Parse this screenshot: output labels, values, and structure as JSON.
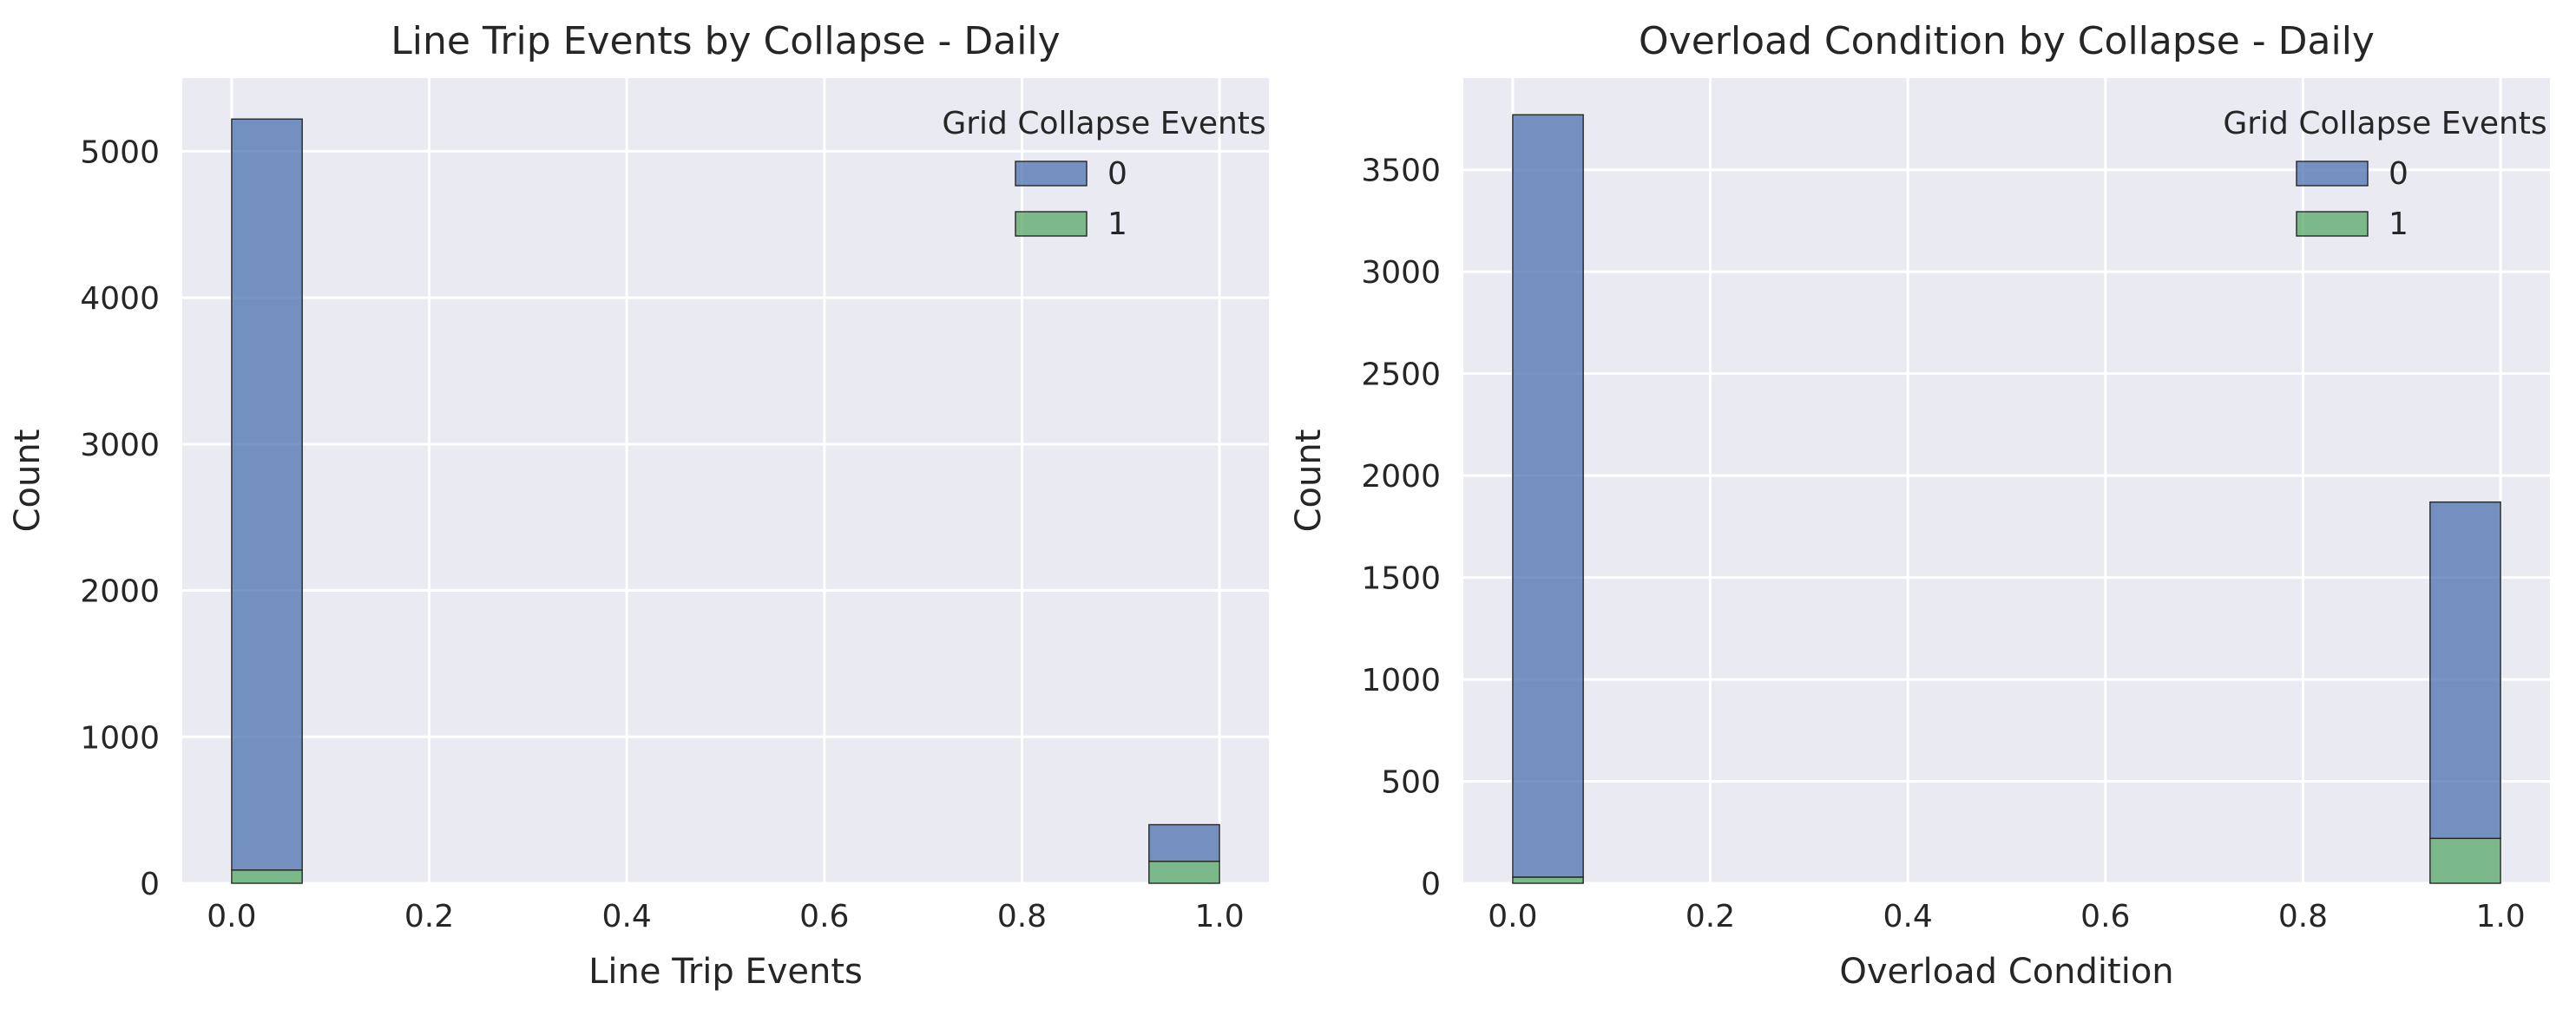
{
  "chart_data": [
    {
      "type": "bar",
      "subtype": "stacked-histogram",
      "title": "Line Trip Events by Collapse - Daily",
      "xlabel": "Line Trip Events",
      "ylabel": "Count",
      "xlim": [
        -0.05,
        1.05
      ],
      "ylim": [
        0,
        5500
      ],
      "xticks": [
        0.0,
        0.2,
        0.4,
        0.6,
        0.8,
        1.0
      ],
      "xtick_labels": [
        "0.0",
        "0.2",
        "0.4",
        "0.6",
        "0.8",
        "1.0"
      ],
      "yticks": [
        0,
        1000,
        2000,
        3000,
        4000,
        5000
      ],
      "ytick_labels": [
        "0",
        "1000",
        "2000",
        "3000",
        "4000",
        "5000"
      ],
      "grid": true,
      "legend": {
        "title": "Grid Collapse Events",
        "placement": "top-right"
      },
      "bins": [
        [
          0.0,
          0.0714
        ],
        [
          0.9286,
          1.0
        ]
      ],
      "series": [
        {
          "name": "0",
          "color": "#4c72b0",
          "values": [
            5130,
            250
          ]
        },
        {
          "name": "1",
          "color": "#55a868",
          "values": [
            90,
            150
          ]
        }
      ]
    },
    {
      "type": "bar",
      "subtype": "stacked-histogram",
      "title": "Overload Condition by Collapse - Daily",
      "xlabel": "Overload Condition",
      "ylabel": "Count",
      "xlim": [
        -0.05,
        1.05
      ],
      "ylim": [
        0,
        3950
      ],
      "xticks": [
        0.0,
        0.2,
        0.4,
        0.6,
        0.8,
        1.0
      ],
      "xtick_labels": [
        "0.0",
        "0.2",
        "0.4",
        "0.6",
        "0.8",
        "1.0"
      ],
      "yticks": [
        0,
        500,
        1000,
        1500,
        2000,
        2500,
        3000,
        3500
      ],
      "ytick_labels": [
        "0",
        "500",
        "1000",
        "1500",
        "2000",
        "2500",
        "3000",
        "3500"
      ],
      "grid": true,
      "legend": {
        "title": "Grid Collapse Events",
        "placement": "top-right"
      },
      "bins": [
        [
          0.0,
          0.0714
        ],
        [
          0.9286,
          1.0
        ]
      ],
      "series": [
        {
          "name": "0",
          "color": "#4c72b0",
          "values": [
            3740,
            1650
          ]
        },
        {
          "name": "1",
          "color": "#55a868",
          "values": [
            30,
            220
          ]
        }
      ]
    }
  ]
}
